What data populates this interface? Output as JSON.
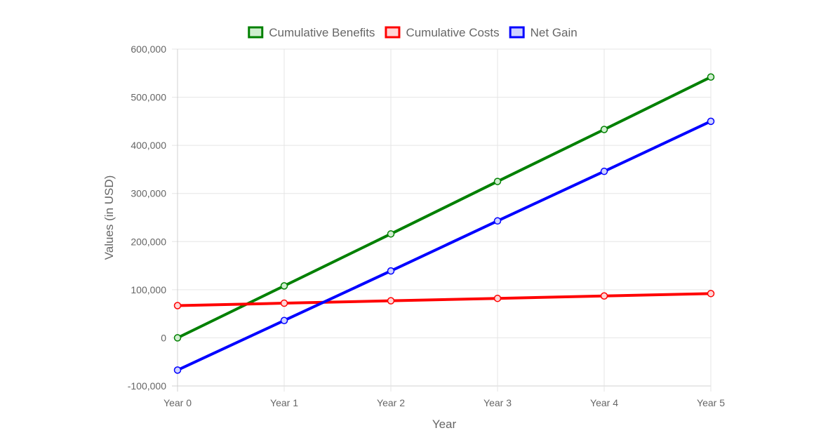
{
  "chart_data": {
    "type": "line",
    "categories": [
      "Year 0",
      "Year 1",
      "Year 2",
      "Year 3",
      "Year 4",
      "Year 5"
    ],
    "xlabel": "Year",
    "ylabel": "Values (in USD)",
    "ylim": [
      -100000,
      600000
    ],
    "yticks": [
      -100000,
      0,
      100000,
      200000,
      300000,
      400000,
      500000,
      600000
    ],
    "ytick_labels": [
      "-100,000",
      "0",
      "100,000",
      "200,000",
      "300,000",
      "400,000",
      "500,000",
      "600,000"
    ],
    "grid": true,
    "legend_position": "top",
    "series": [
      {
        "name": "Cumulative Benefits",
        "color": "#008000",
        "fill": "#cfeecf",
        "values": [
          0,
          108000,
          216000,
          325000,
          433000,
          542000
        ]
      },
      {
        "name": "Cumulative Costs",
        "color": "#ff0000",
        "fill": "#ffd6d6",
        "values": [
          67000,
          72000,
          77000,
          82000,
          87000,
          92000
        ]
      },
      {
        "name": "Net Gain",
        "color": "#0000ff",
        "fill": "#cfd2ff",
        "values": [
          -67000,
          36000,
          139000,
          243000,
          346000,
          450000
        ]
      }
    ]
  }
}
